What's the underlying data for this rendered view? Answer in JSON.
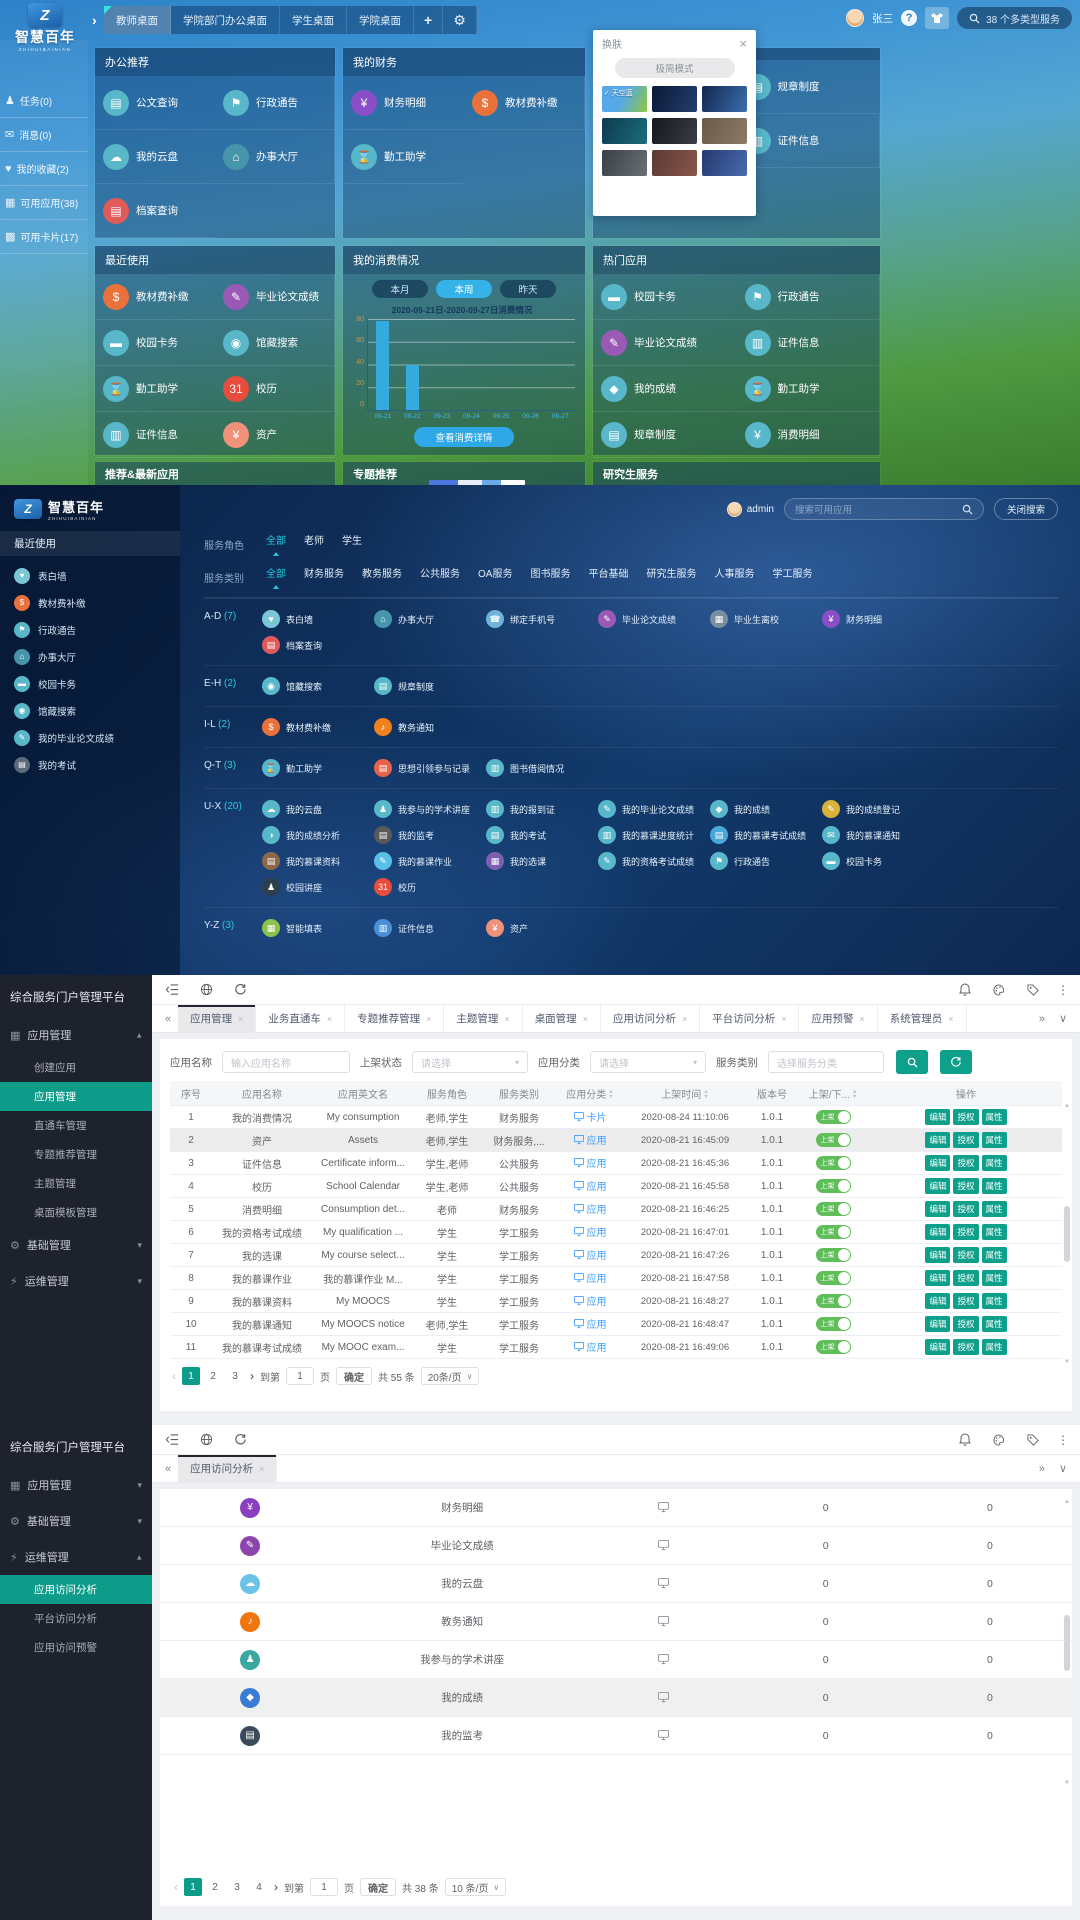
{
  "glyphs": {
    "chev": "›",
    "plus": "+",
    "gear": "⚙",
    "close": "×",
    "prev": "‹",
    "next": "›",
    "more": "⋮",
    "caret": "▾",
    "expand": "»",
    "collapse": "«",
    "down": "∨",
    "up_t": "▲",
    "down_t": "▼"
  },
  "brand": {
    "mark": "Z",
    "name": "智慧百年",
    "sub": "ZHIHUIBAINIAN"
  },
  "desktop": {
    "tabs": [
      {
        "label": "教师桌面",
        "active": true
      },
      {
        "label": "学院部门办公桌面"
      },
      {
        "label": "学生桌面"
      },
      {
        "label": "学院桌面"
      }
    ],
    "user": "张三",
    "help": "?",
    "search_label": "38 个多类型服务",
    "nav": [
      {
        "label": "任务(0)",
        "g": "♟"
      },
      {
        "label": "消息(0)",
        "g": "✉"
      },
      {
        "label": "我的收藏(2)",
        "g": "♥"
      },
      {
        "label": "可用应用(38)",
        "g": "▦"
      },
      {
        "label": "可用卡片(17)",
        "g": "▩"
      }
    ],
    "office": {
      "title": "办公推荐",
      "items": [
        {
          "n": "公文查询",
          "c": "#58b7c9",
          "g": "▤"
        },
        {
          "n": "行政通告",
          "c": "#58b7c9",
          "g": "⚑"
        },
        {
          "n": "我的云盘",
          "c": "#58b7c9",
          "g": "☁"
        },
        {
          "n": "办事大厅",
          "c": "#4795ab",
          "g": "⌂"
        },
        {
          "n": "档案查询",
          "c": "#e05a5a",
          "g": "▤"
        }
      ]
    },
    "finance": {
      "title": "我的财务",
      "items": [
        {
          "n": "财务明细",
          "c": "#8a4fc8",
          "g": "¥"
        },
        {
          "n": "教材费补缴",
          "c": "#e8713c",
          "g": "$"
        },
        {
          "n": "勤工助学",
          "c": "#58b7c9",
          "g": "⌛"
        }
      ]
    },
    "covered": {
      "items": [
        {
          "n": "规章制度",
          "c": "#58b7c9",
          "g": "▤"
        },
        {
          "n": "证件信息",
          "c": "#58b7c9",
          "g": "▥"
        }
      ]
    },
    "recent": {
      "title": "最近使用",
      "items": [
        {
          "n": "教材费补缴",
          "c": "#e8713c",
          "g": "$"
        },
        {
          "n": "毕业论文成绩",
          "c": "#9b59b6",
          "g": "✎"
        },
        {
          "n": "校园卡务",
          "c": "#58b7c9",
          "g": "▬"
        },
        {
          "n": "馆藏搜索",
          "c": "#58b7c9",
          "g": "◉"
        },
        {
          "n": "勤工助学",
          "c": "#58b7c9",
          "g": "⌛"
        },
        {
          "n": "校历",
          "c": "#e74c3c",
          "g": "31"
        },
        {
          "n": "证件信息",
          "c": "#58b7c9",
          "g": "▥"
        },
        {
          "n": "资产",
          "c": "#f0917c",
          "g": "¥"
        }
      ]
    },
    "hot": {
      "title": "热门应用",
      "items": [
        {
          "n": "校园卡务",
          "c": "#58b7c9",
          "g": "▬"
        },
        {
          "n": "行政通告",
          "c": "#58b7c9",
          "g": "⚑"
        },
        {
          "n": "毕业论文成绩",
          "c": "#9b59b6",
          "g": "✎"
        },
        {
          "n": "证件信息",
          "c": "#58b7c9",
          "g": "▥"
        },
        {
          "n": "我的成绩",
          "c": "#58b7c9",
          "g": "◆"
        },
        {
          "n": "勤工助学",
          "c": "#58b7c9",
          "g": "⌛"
        },
        {
          "n": "规章制度",
          "c": "#58b7c9",
          "g": "▤"
        },
        {
          "n": "消费明细",
          "c": "#58b7c9",
          "g": "¥"
        }
      ]
    },
    "consumption": {
      "title": "我的消费情况",
      "tabs": [
        {
          "label": "本月"
        },
        {
          "label": "本周",
          "active": true
        },
        {
          "label": "昨天"
        }
      ],
      "button": "查看消费详情"
    },
    "chart": {
      "type": "bar",
      "title": "2020-09-21日-2020-09-27日消费情况",
      "ymax": 80,
      "yticks": [
        "80",
        "60",
        "40",
        "20",
        "0"
      ],
      "bar_color": "#35aadc",
      "points": [
        {
          "d": "09-21",
          "v": 78
        },
        {
          "d": "09-22",
          "v": 40
        },
        {
          "d": "09-23",
          "v": 0
        },
        {
          "d": "09-24",
          "v": 0
        },
        {
          "d": "09-25",
          "v": 0
        },
        {
          "d": "09-26",
          "v": 0
        },
        {
          "d": "09-27",
          "v": 0
        }
      ]
    },
    "footer": [
      {
        "title": "推荐&最新应用"
      },
      {
        "title": "专题推荐",
        "sliver": true
      },
      {
        "title": "研究生服务"
      }
    ],
    "skin": {
      "title": "换肤",
      "mode_button": "极简模式",
      "skins": [
        {
          "label": "✓ 天空蓝",
          "bg": "linear-gradient(115deg,#55a9e8 45%,#8fc63f)"
        },
        {
          "bg": "linear-gradient(115deg,#0a1836,#233f6e)"
        },
        {
          "bg": "linear-gradient(115deg,#12264e,#3b6fae)"
        },
        {
          "bg": "linear-gradient(115deg,#0d3a4e,#1b6d7e)"
        },
        {
          "bg": "linear-gradient(115deg,#15171c,#3a3d44)"
        },
        {
          "bg": "linear-gradient(115deg,#6b5a4a,#8a7a66)"
        },
        {
          "bg": "linear-gradient(115deg,#3a3f45,#6a7076)"
        },
        {
          "bg": "linear-gradient(115deg,#5a3a34,#8a564a)"
        },
        {
          "bg": "linear-gradient(115deg,#233a6e,#4a6ab0)"
        }
      ]
    }
  },
  "directory": {
    "recent_title": "最近使用",
    "recent": [
      {
        "n": "表白墙",
        "c": "#7ac6d6",
        "g": "♥"
      },
      {
        "n": "教材费补缴",
        "c": "#e8713c",
        "g": "$"
      },
      {
        "n": "行政通告",
        "c": "#58b7c9",
        "g": "⚑"
      },
      {
        "n": "办事大厅",
        "c": "#4795ab",
        "g": "⌂"
      },
      {
        "n": "校园卡务",
        "c": "#58b7c9",
        "g": "▬"
      },
      {
        "n": "馆藏搜索",
        "c": "#58b7c9",
        "g": "◉"
      },
      {
        "n": "我的毕业论文成绩",
        "c": "#58b7c9",
        "g": "✎"
      },
      {
        "n": "我的考试",
        "c": "#5a6b7a",
        "g": "▤"
      }
    ],
    "user": "admin",
    "search_placeholder": "搜索可用应用",
    "close_search": "关闭搜索",
    "role_label": "服务角色",
    "roles": [
      {
        "label": "全部",
        "active": true
      },
      {
        "label": "老师"
      },
      {
        "label": "学生"
      }
    ],
    "cat_label": "服务类别",
    "cats": [
      {
        "label": "全部",
        "active": true
      },
      {
        "label": "财务服务"
      },
      {
        "label": "教务服务"
      },
      {
        "label": "公共服务"
      },
      {
        "label": "OA服务"
      },
      {
        "label": "图书服务"
      },
      {
        "label": "平台基础"
      },
      {
        "label": "研究生服务"
      },
      {
        "label": "人事服务"
      },
      {
        "label": "学工服务"
      }
    ],
    "groups": [
      {
        "letter": "A-D",
        "count": "(7)",
        "apps": [
          {
            "n": "表白墙",
            "c": "#7ac6d6",
            "g": "♥"
          },
          {
            "n": "办事大厅",
            "c": "#4795ab",
            "g": "⌂"
          },
          {
            "n": "绑定手机号",
            "c": "#6db5d8",
            "g": "☎"
          },
          {
            "n": "毕业论文成绩",
            "c": "#9b59b6",
            "g": "✎"
          },
          {
            "n": "毕业生离校",
            "c": "#7b8ea0",
            "g": "▦"
          },
          {
            "n": "财务明细",
            "c": "#8a4fc8",
            "g": "¥"
          },
          {
            "n": "档案查询",
            "c": "#e05a5a",
            "g": "▤"
          }
        ]
      },
      {
        "letter": "E-H",
        "count": "(2)",
        "apps": [
          {
            "n": "馆藏搜索",
            "c": "#58b7c9",
            "g": "◉"
          },
          {
            "n": "规章制度",
            "c": "#58b7c9",
            "g": "▤"
          }
        ]
      },
      {
        "letter": "I-L",
        "count": "(2)",
        "apps": [
          {
            "n": "教材费补缴",
            "c": "#e8713c",
            "g": "$"
          },
          {
            "n": "教务通知",
            "c": "#f0821e",
            "g": "♪"
          }
        ]
      },
      {
        "letter": "Q-T",
        "count": "(3)",
        "apps": [
          {
            "n": "勤工助学",
            "c": "#58b7c9",
            "g": "⌛"
          },
          {
            "n": "思想引领参与记录",
            "c": "#e8624a",
            "g": "▤"
          },
          {
            "n": "图书借阅情况",
            "c": "#58b7c9",
            "g": "▥"
          }
        ]
      },
      {
        "letter": "U-X",
        "count": "(20)",
        "apps": [
          {
            "n": "我的云盘",
            "c": "#58b7c9",
            "g": "☁"
          },
          {
            "n": "我参与的学术讲座",
            "c": "#58b7c9",
            "g": "♟"
          },
          {
            "n": "我的报到证",
            "c": "#58b7c9",
            "g": "▥"
          },
          {
            "n": "我的毕业论文成绩",
            "c": "#58b7c9",
            "g": "✎"
          },
          {
            "n": "我的成绩",
            "c": "#58b7c9",
            "g": "◆"
          },
          {
            "n": "我的成绩登记",
            "c": "#d8b23a",
            "g": "✎"
          },
          {
            "n": "我的成绩分析",
            "c": "#58b7c9",
            "g": "◑"
          },
          {
            "n": "我的监考",
            "c": "#5a5a5a",
            "g": "▤"
          },
          {
            "n": "我的考试",
            "c": "#58b7c9",
            "g": "▤"
          },
          {
            "n": "我的慕课进度统计",
            "c": "#58b7c9",
            "g": "▥"
          },
          {
            "n": "我的慕课考试成绩",
            "c": "#4aa8d8",
            "g": "▤"
          },
          {
            "n": "我的慕课通知",
            "c": "#58b7c9",
            "g": "✉"
          },
          {
            "n": "我的慕课资料",
            "c": "#8a6848",
            "g": "▤"
          },
          {
            "n": "我的慕课作业",
            "c": "#58c0e8",
            "g": "✎"
          },
          {
            "n": "我的选课",
            "c": "#7d5fb2",
            "g": "▦"
          },
          {
            "n": "我的资格考试成绩",
            "c": "#58b7c9",
            "g": "✎"
          },
          {
            "n": "行政通告",
            "c": "#58b7c9",
            "g": "⚑"
          },
          {
            "n": "校园卡务",
            "c": "#58b7c9",
            "g": "▬"
          },
          {
            "n": "校园讲座",
            "c": "#2f3e4e",
            "g": "♟"
          },
          {
            "n": "校历",
            "c": "#e74c3c",
            "g": "31"
          }
        ]
      },
      {
        "letter": "Y-Z",
        "count": "(3)",
        "apps": [
          {
            "n": "智能填表",
            "c": "#8bc34a",
            "g": "▦"
          },
          {
            "n": "证件信息",
            "c": "#4a90d9",
            "g": "▥"
          },
          {
            "n": "资产",
            "c": "#f0917c",
            "g": "¥"
          }
        ]
      }
    ]
  },
  "admin": {
    "platform_title": "综合服务门户管理平台",
    "menu": [
      {
        "label": "应用管理",
        "g": "▦",
        "open": true,
        "children": [
          {
            "label": "创建应用"
          },
          {
            "label": "应用管理",
            "active": true
          },
          {
            "label": "直通车管理"
          },
          {
            "label": "专题推荐管理"
          },
          {
            "label": "主题管理"
          },
          {
            "label": "桌面模板管理"
          }
        ]
      },
      {
        "label": "基础管理",
        "g": "⚙",
        "children": []
      },
      {
        "label": "运维管理",
        "g": "⚡",
        "children": []
      }
    ],
    "tabs": [
      {
        "label": "应用管理",
        "active": true
      },
      {
        "label": "业务直通车"
      },
      {
        "label": "专题推荐管理"
      },
      {
        "label": "主题管理"
      },
      {
        "label": "桌面管理"
      },
      {
        "label": "应用访问分析"
      },
      {
        "label": "平台访问分析"
      },
      {
        "label": "应用预警"
      },
      {
        "label": "系统管理员"
      }
    ],
    "filters": {
      "name_label": "应用名称",
      "name_placeholder": "输入应用名称",
      "state_label": "上架状态",
      "state_placeholder": "请选择",
      "class_label": "应用分类",
      "class_placeholder": "请选择",
      "svc_label": "服务类别",
      "svc_placeholder": "选择服务分类"
    },
    "headers": [
      {
        "label": "序号"
      },
      {
        "label": "应用名称"
      },
      {
        "label": "应用英文名"
      },
      {
        "label": "服务角色"
      },
      {
        "label": "服务类别"
      },
      {
        "label": "应用分类",
        "sort": true
      },
      {
        "label": "上架时间",
        "sort": true
      },
      {
        "label": "版本号"
      },
      {
        "label": "上架/下...",
        "sort": true
      },
      {
        "label": "操作"
      }
    ],
    "toggle_label": "上架",
    "actions": [
      "编辑",
      "授权",
      "属性"
    ],
    "rows": [
      {
        "i": "1",
        "name": "我的消费情况",
        "en": "My consumption",
        "role": "老师,学生",
        "cat": "财务服务",
        "type": "卡片",
        "time": "2020-08-24 11:10:06",
        "ver": "1.0.1"
      },
      {
        "i": "2",
        "name": "资产",
        "en": "Assets",
        "role": "老师,学生",
        "cat": "财务服务,...",
        "type": "应用",
        "time": "2020-08-21 16:45:09",
        "ver": "1.0.1",
        "alt": true
      },
      {
        "i": "3",
        "name": "证件信息",
        "en": "Certificate inform...",
        "role": "学生,老师",
        "cat": "公共服务",
        "type": "应用",
        "time": "2020-08-21 16:45:36",
        "ver": "1.0.1"
      },
      {
        "i": "4",
        "name": "校历",
        "en": "School Calendar",
        "role": "学生,老师",
        "cat": "公共服务",
        "type": "应用",
        "time": "2020-08-21 16:45:58",
        "ver": "1.0.1"
      },
      {
        "i": "5",
        "name": "消费明细",
        "en": "Consumption det...",
        "role": "老师",
        "cat": "财务服务",
        "type": "应用",
        "time": "2020-08-21 16:46:25",
        "ver": "1.0.1"
      },
      {
        "i": "6",
        "name": "我的资格考试成绩",
        "en": "My qualification ...",
        "role": "学生",
        "cat": "学工服务",
        "type": "应用",
        "time": "2020-08-21 16:47:01",
        "ver": "1.0.1"
      },
      {
        "i": "7",
        "name": "我的选课",
        "en": "My course select...",
        "role": "学生",
        "cat": "学工服务",
        "type": "应用",
        "time": "2020-08-21 16:47:26",
        "ver": "1.0.1"
      },
      {
        "i": "8",
        "name": "我的慕课作业",
        "en": "我的慕课作业 M...",
        "role": "学生",
        "cat": "学工服务",
        "type": "应用",
        "time": "2020-08-21 16:47:58",
        "ver": "1.0.1"
      },
      {
        "i": "9",
        "name": "我的慕课资料",
        "en": "My MOOCS",
        "role": "学生",
        "cat": "学工服务",
        "type": "应用",
        "time": "2020-08-21 16:48:27",
        "ver": "1.0.1"
      },
      {
        "i": "10",
        "name": "我的慕课通知",
        "en": "My MOOCS notice",
        "role": "老师,学生",
        "cat": "学工服务",
        "type": "应用",
        "time": "2020-08-21 16:48:47",
        "ver": "1.0.1"
      },
      {
        "i": "11",
        "name": "我的慕课考试成绩",
        "en": "My MOOC exam...",
        "role": "学生",
        "cat": "学工服务",
        "type": "应用",
        "time": "2020-08-21 16:49:06",
        "ver": "1.0.1"
      }
    ],
    "pagination": {
      "pages": [
        {
          "n": "1",
          "active": true
        },
        {
          "n": "2"
        },
        {
          "n": "3"
        }
      ],
      "jump_prefix": "到第",
      "jump_value": "1",
      "jump_suffix": "页",
      "confirm": "确定",
      "total": "共 55 条",
      "per_page": "20条/页"
    }
  },
  "analysis": {
    "platform_title": "综合服务门户管理平台",
    "menu": [
      {
        "label": "应用管理",
        "g": "▦",
        "children": []
      },
      {
        "label": "基础管理",
        "g": "⚙",
        "children": []
      },
      {
        "label": "运维管理",
        "g": "⚡",
        "open": true,
        "children": [
          {
            "label": "应用访问分析",
            "active": true
          },
          {
            "label": "平台访问分析"
          },
          {
            "label": "应用访问预警"
          }
        ]
      }
    ],
    "tabs": [
      {
        "label": "应用访问分析",
        "active": true
      }
    ],
    "rows": [
      {
        "name": "财务明细",
        "c": "#8a3fc0",
        "g": "¥",
        "v1": "0",
        "v2": "0"
      },
      {
        "name": "毕业论文成绩",
        "c": "#8e44ad",
        "g": "✎",
        "v1": "0",
        "v2": "0"
      },
      {
        "name": "我的云盘",
        "c": "#6bc3e8",
        "g": "☁",
        "v1": "0",
        "v2": "0"
      },
      {
        "name": "教务通知",
        "c": "#f0750f",
        "g": "♪",
        "v1": "0",
        "v2": "0"
      },
      {
        "name": "我参与的学术讲座",
        "c": "#3aa8a0",
        "g": "♟",
        "v1": "0",
        "v2": "0"
      },
      {
        "name": "我的成绩",
        "c": "#3a7bd5",
        "g": "◆",
        "v1": "0",
        "v2": "0",
        "alt": true
      },
      {
        "name": "我的监考",
        "c": "#3b4a5a",
        "g": "▤",
        "v1": "0",
        "v2": "0"
      }
    ],
    "pagination": {
      "pages": [
        {
          "n": "1",
          "active": true
        },
        {
          "n": "2"
        },
        {
          "n": "3"
        },
        {
          "n": "4"
        }
      ],
      "jump_prefix": "到第",
      "jump_value": "1",
      "jump_suffix": "页",
      "confirm": "确定",
      "total": "共 38 条",
      "per_page": "10 条/页"
    }
  }
}
